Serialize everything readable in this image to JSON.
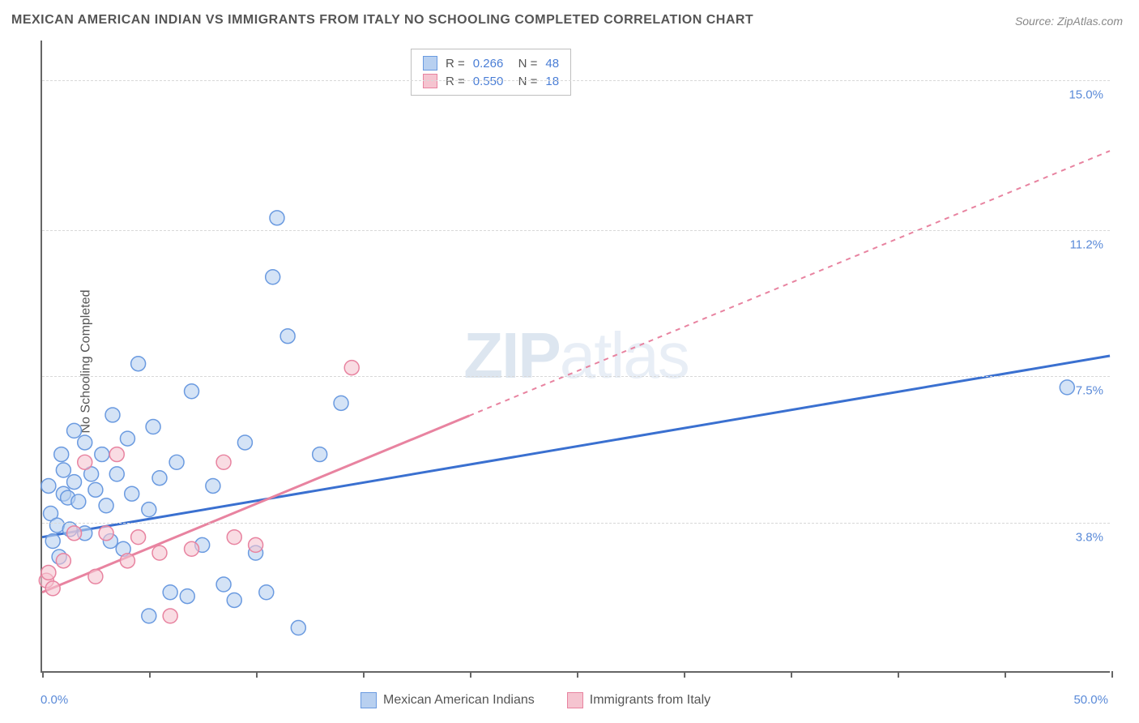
{
  "title": "MEXICAN AMERICAN INDIAN VS IMMIGRANTS FROM ITALY NO SCHOOLING COMPLETED CORRELATION CHART",
  "source": "Source: ZipAtlas.com",
  "y_axis_label": "No Schooling Completed",
  "watermark_bold": "ZIP",
  "watermark_light": "atlas",
  "chart": {
    "type": "scatter",
    "xlim": [
      0,
      50
    ],
    "ylim": [
      0,
      16
    ],
    "x_ticks": [
      0,
      5,
      10,
      15,
      20,
      25,
      30,
      35,
      40,
      45,
      50
    ],
    "x_tick_labels": {
      "0": "0.0%",
      "50": "50.0%"
    },
    "y_gridlines": [
      3.8,
      7.5,
      11.2,
      15.0
    ],
    "y_tick_labels": [
      "3.8%",
      "7.5%",
      "11.2%",
      "15.0%"
    ],
    "background_color": "#ffffff",
    "grid_color": "#d8d8d8",
    "axis_color": "#666666",
    "label_color": "#5a8ad8",
    "series": [
      {
        "name": "Mexican American Indians",
        "color_fill": "#b8d0f0",
        "color_stroke": "#6a9ae0",
        "r_value": "0.266",
        "n_value": "48",
        "regression": {
          "x1": 0,
          "y1": 3.4,
          "x2": 50,
          "y2": 8.0,
          "dash_from_x": null
        },
        "points": [
          [
            0.3,
            4.7
          ],
          [
            0.4,
            4.0
          ],
          [
            0.5,
            3.3
          ],
          [
            0.7,
            3.7
          ],
          [
            0.8,
            2.9
          ],
          [
            0.9,
            5.5
          ],
          [
            1.0,
            4.5
          ],
          [
            1.0,
            5.1
          ],
          [
            1.2,
            4.4
          ],
          [
            1.3,
            3.6
          ],
          [
            1.5,
            6.1
          ],
          [
            1.5,
            4.8
          ],
          [
            1.7,
            4.3
          ],
          [
            2.0,
            5.8
          ],
          [
            2.0,
            3.5
          ],
          [
            2.3,
            5.0
          ],
          [
            2.5,
            4.6
          ],
          [
            2.8,
            5.5
          ],
          [
            3.0,
            4.2
          ],
          [
            3.2,
            3.3
          ],
          [
            3.3,
            6.5
          ],
          [
            3.5,
            5.0
          ],
          [
            3.8,
            3.1
          ],
          [
            4.0,
            5.9
          ],
          [
            4.2,
            4.5
          ],
          [
            4.5,
            7.8
          ],
          [
            5.0,
            4.1
          ],
          [
            5.0,
            1.4
          ],
          [
            5.2,
            6.2
          ],
          [
            5.5,
            4.9
          ],
          [
            6.0,
            2.0
          ],
          [
            6.3,
            5.3
          ],
          [
            6.8,
            1.9
          ],
          [
            7.0,
            7.1
          ],
          [
            7.5,
            3.2
          ],
          [
            8.0,
            4.7
          ],
          [
            8.5,
            2.2
          ],
          [
            9.0,
            1.8
          ],
          [
            9.5,
            5.8
          ],
          [
            10.0,
            3.0
          ],
          [
            10.5,
            2.0
          ],
          [
            10.8,
            10.0
          ],
          [
            11.0,
            11.5
          ],
          [
            11.5,
            8.5
          ],
          [
            12.0,
            1.1
          ],
          [
            13.0,
            5.5
          ],
          [
            14.0,
            6.8
          ],
          [
            48.0,
            7.2
          ]
        ]
      },
      {
        "name": "Immigrants from Italy",
        "color_fill": "#f5c4d0",
        "color_stroke": "#e883a0",
        "r_value": "0.550",
        "n_value": "18",
        "regression": {
          "x1": 0,
          "y1": 2.0,
          "x2": 50,
          "y2": 13.2,
          "dash_from_x": 20
        },
        "points": [
          [
            0.2,
            2.3
          ],
          [
            0.3,
            2.5
          ],
          [
            0.5,
            2.1
          ],
          [
            1.0,
            2.8
          ],
          [
            1.5,
            3.5
          ],
          [
            2.0,
            5.3
          ],
          [
            2.5,
            2.4
          ],
          [
            3.0,
            3.5
          ],
          [
            3.5,
            5.5
          ],
          [
            4.0,
            2.8
          ],
          [
            4.5,
            3.4
          ],
          [
            5.5,
            3.0
          ],
          [
            6.0,
            1.4
          ],
          [
            7.0,
            3.1
          ],
          [
            8.5,
            5.3
          ],
          [
            9.0,
            3.4
          ],
          [
            10.0,
            3.2
          ],
          [
            14.5,
            7.7
          ]
        ]
      }
    ]
  },
  "legend_series1": "Mexican American Indians",
  "legend_series2": "Immigrants from Italy"
}
